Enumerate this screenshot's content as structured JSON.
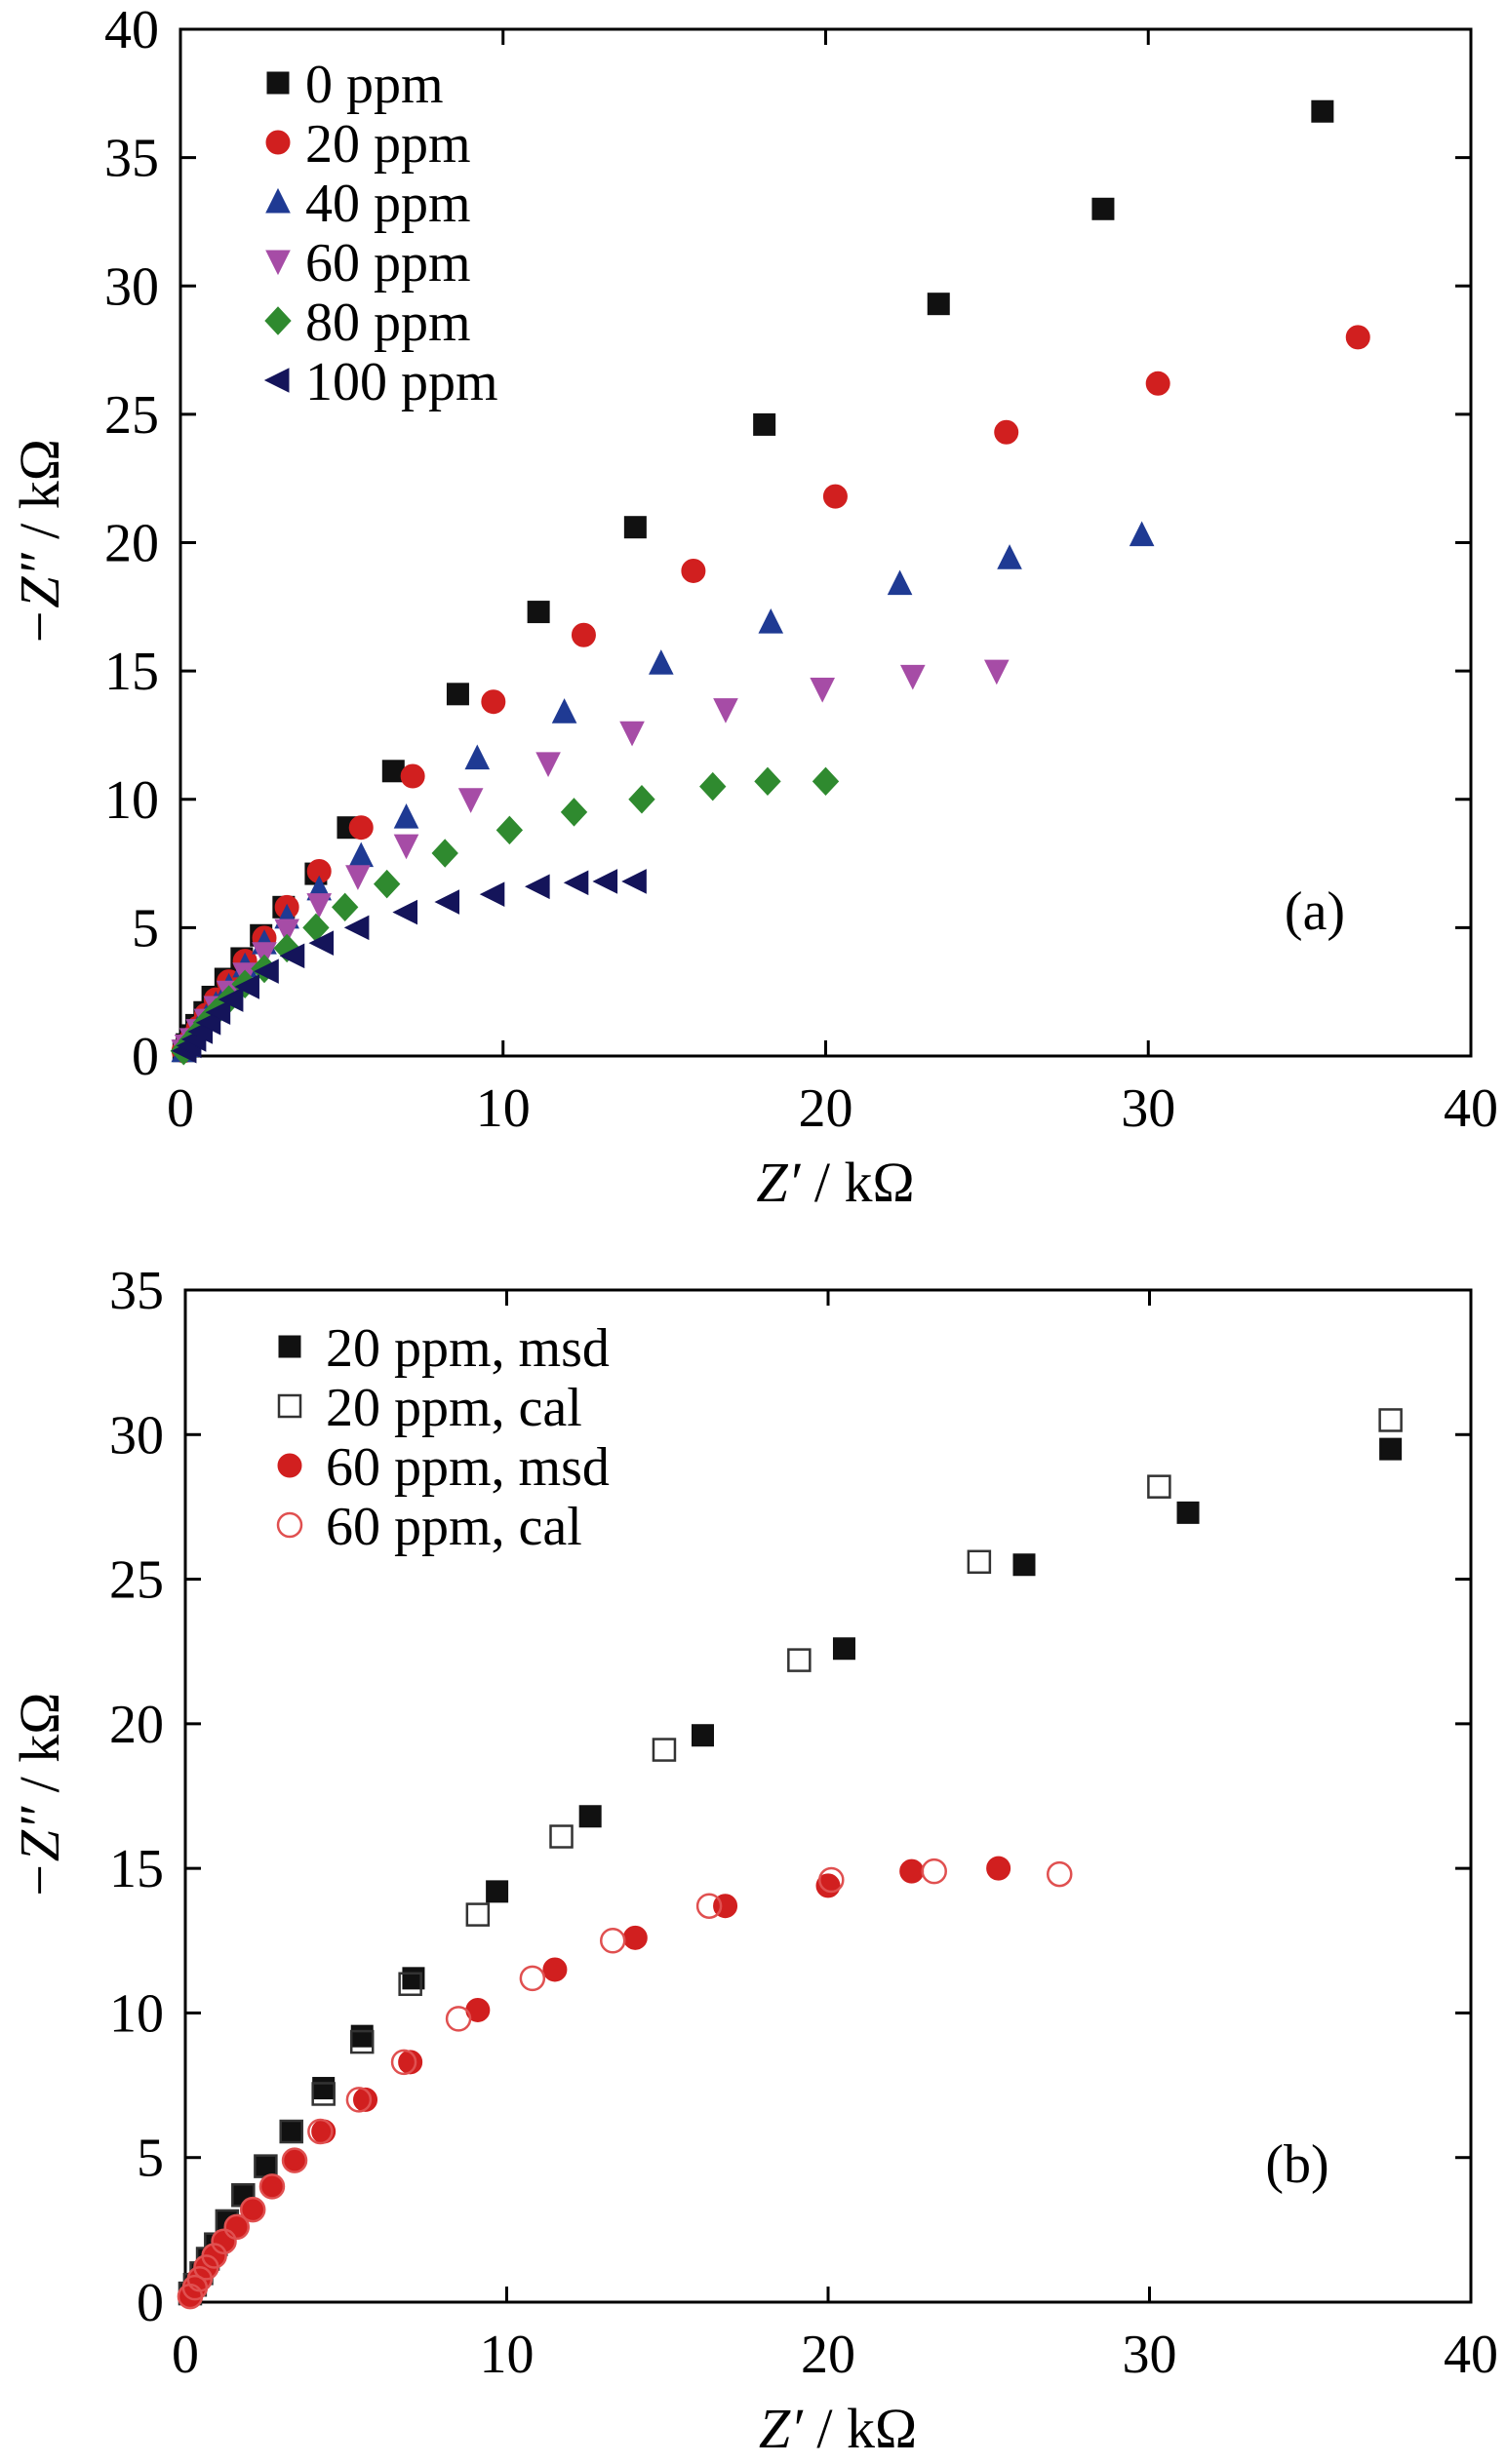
{
  "chart_data": [
    {
      "type": "scatter",
      "panel_label": "(a)",
      "xlabel": {
        "var": "Z′",
        "unit": " / kΩ"
      },
      "ylabel": {
        "var": "−Z″",
        "unit": " / kΩ"
      },
      "xlim": [
        0,
        40
      ],
      "ylim": [
        0,
        40
      ],
      "xticks": [
        0,
        10,
        20,
        30,
        40
      ],
      "yticks": [
        0,
        5,
        10,
        15,
        20,
        25,
        30,
        35,
        40
      ],
      "grid": false,
      "legend_position": "top-left",
      "series": [
        {
          "name": "0 ppm",
          "marker": "square",
          "color": "#111111",
          "filled": true,
          "x": [
            0.1,
            0.2,
            0.35,
            0.5,
            0.75,
            1.0,
            1.4,
            1.9,
            2.5,
            3.2,
            4.2,
            5.2,
            6.6,
            8.6,
            11.1,
            14.1,
            18.1,
            23.5,
            28.6,
            35.4
          ],
          "y": [
            0.2,
            0.45,
            0.8,
            1.2,
            1.7,
            2.3,
            3.0,
            3.8,
            4.7,
            5.8,
            7.1,
            8.9,
            11.1,
            14.1,
            17.3,
            20.6,
            24.6,
            29.3,
            33.0,
            36.8
          ]
        },
        {
          "name": "20 ppm",
          "marker": "circle",
          "color": "#d11f1f",
          "filled": true,
          "x": [
            0.1,
            0.2,
            0.35,
            0.55,
            0.8,
            1.1,
            1.5,
            2.0,
            2.6,
            3.3,
            4.3,
            5.6,
            7.2,
            9.7,
            12.5,
            15.9,
            20.3,
            25.6,
            30.3,
            36.5
          ],
          "y": [
            0.2,
            0.4,
            0.7,
            1.1,
            1.6,
            2.2,
            2.9,
            3.7,
            4.6,
            5.8,
            7.2,
            8.9,
            10.9,
            13.8,
            16.4,
            18.9,
            21.8,
            24.3,
            26.2,
            28.0
          ]
        },
        {
          "name": "40 ppm",
          "marker": "triangle-up",
          "color": "#1f3a93",
          "filled": true,
          "x": [
            0.1,
            0.2,
            0.35,
            0.55,
            0.8,
            1.1,
            1.5,
            2.0,
            2.6,
            3.3,
            4.3,
            5.6,
            7.0,
            9.2,
            11.9,
            14.9,
            18.3,
            22.3,
            25.7,
            29.8
          ],
          "y": [
            0.2,
            0.4,
            0.7,
            1.1,
            1.5,
            2.0,
            2.7,
            3.5,
            4.4,
            5.4,
            6.5,
            7.8,
            9.3,
            11.6,
            13.4,
            15.3,
            16.9,
            18.4,
            19.4,
            20.3
          ]
        },
        {
          "name": "60 ppm",
          "marker": "triangle-down",
          "color": "#a64ca6",
          "filled": true,
          "x": [
            0.1,
            0.2,
            0.35,
            0.55,
            0.8,
            1.1,
            1.5,
            2.0,
            2.6,
            3.3,
            4.3,
            5.5,
            7.0,
            9.0,
            11.4,
            14.0,
            16.9,
            19.9,
            22.7,
            25.3
          ],
          "y": [
            0.2,
            0.4,
            0.65,
            1.0,
            1.4,
            1.9,
            2.5,
            3.2,
            4.0,
            4.9,
            5.9,
            7.0,
            8.2,
            10.0,
            11.4,
            12.6,
            13.5,
            14.3,
            14.8,
            15.0
          ]
        },
        {
          "name": "80 ppm",
          "marker": "diamond",
          "color": "#2f8a2f",
          "filled": true,
          "x": [
            0.1,
            0.2,
            0.35,
            0.55,
            0.8,
            1.1,
            1.5,
            2.0,
            2.6,
            3.3,
            4.2,
            5.1,
            6.4,
            8.2,
            10.2,
            12.2,
            14.3,
            16.5,
            18.2,
            20.0
          ],
          "y": [
            0.2,
            0.35,
            0.6,
            0.9,
            1.3,
            1.7,
            2.2,
            2.8,
            3.4,
            4.2,
            5.0,
            5.8,
            6.7,
            7.9,
            8.8,
            9.5,
            10.0,
            10.5,
            10.7,
            10.7
          ]
        },
        {
          "name": "100 ppm",
          "marker": "triangle-left",
          "color": "#14145a",
          "filled": true,
          "x": [
            0.15,
            0.3,
            0.45,
            0.65,
            0.9,
            1.2,
            1.6,
            2.1,
            2.7,
            3.5,
            4.4,
            5.5,
            7.0,
            8.3,
            9.7,
            11.1,
            12.3,
            13.2,
            14.1
          ],
          "y": [
            0.2,
            0.4,
            0.65,
            0.95,
            1.3,
            1.7,
            2.2,
            2.7,
            3.3,
            3.9,
            4.4,
            5.0,
            5.6,
            6.0,
            6.3,
            6.6,
            6.75,
            6.8,
            6.8
          ]
        }
      ]
    },
    {
      "type": "scatter",
      "panel_label": "(b)",
      "xlabel": {
        "var": "Z′",
        "unit": " / kΩ"
      },
      "ylabel": {
        "var": "−Z″",
        "unit": " / kΩ"
      },
      "xlim": [
        0,
        40
      ],
      "ylim": [
        0,
        35
      ],
      "xticks": [
        0,
        10,
        20,
        30,
        40
      ],
      "yticks": [
        0,
        5,
        10,
        15,
        20,
        25,
        30,
        35
      ],
      "grid": false,
      "legend_position": "top-left",
      "series": [
        {
          "name": "20 ppm, msd",
          "marker": "square",
          "color": "#111111",
          "filled": true,
          "x": [
            0.15,
            0.3,
            0.5,
            0.7,
            0.95,
            1.3,
            1.8,
            2.5,
            3.3,
            4.3,
            5.5,
            7.1,
            9.7,
            12.6,
            16.1,
            20.5,
            26.1,
            31.2,
            37.5
          ],
          "y": [
            0.3,
            0.6,
            1.0,
            1.5,
            2.0,
            2.8,
            3.7,
            4.7,
            5.9,
            7.4,
            9.2,
            11.2,
            14.2,
            16.8,
            19.6,
            22.6,
            25.5,
            27.3,
            29.5
          ]
        },
        {
          "name": "20 ppm, cal",
          "marker": "square",
          "color": "#333333",
          "filled": false,
          "x": [
            0.15,
            0.3,
            0.5,
            0.7,
            0.95,
            1.3,
            1.8,
            2.5,
            3.3,
            4.3,
            5.5,
            7.0,
            9.1,
            11.7,
            14.9,
            19.1,
            24.7,
            30.3,
            37.5
          ],
          "y": [
            0.3,
            0.6,
            1.0,
            1.5,
            2.0,
            2.8,
            3.7,
            4.7,
            5.9,
            7.2,
            9.0,
            11.0,
            13.4,
            16.1,
            19.1,
            22.2,
            25.6,
            28.2,
            30.5
          ]
        },
        {
          "name": "60 ppm, msd",
          "marker": "circle",
          "color": "#d11f1f",
          "filled": true,
          "x": [
            0.15,
            0.3,
            0.45,
            0.65,
            0.9,
            1.2,
            1.6,
            2.1,
            2.7,
            3.4,
            4.3,
            5.6,
            7.0,
            9.1,
            11.5,
            14.0,
            16.8,
            20.0,
            22.6,
            25.3
          ],
          "y": [
            0.2,
            0.5,
            0.8,
            1.2,
            1.6,
            2.1,
            2.6,
            3.2,
            4.0,
            4.9,
            5.9,
            7.0,
            8.3,
            10.1,
            11.5,
            12.6,
            13.7,
            14.4,
            14.9,
            15.0
          ]
        },
        {
          "name": "60 ppm, cal",
          "marker": "circle",
          "color": "#e05050",
          "filled": false,
          "x": [
            0.15,
            0.3,
            0.45,
            0.65,
            0.9,
            1.2,
            1.6,
            2.1,
            2.7,
            3.4,
            4.2,
            5.4,
            6.8,
            8.5,
            10.8,
            13.3,
            16.3,
            20.1,
            23.3,
            27.2
          ],
          "y": [
            0.2,
            0.5,
            0.8,
            1.2,
            1.6,
            2.1,
            2.6,
            3.2,
            4.0,
            4.9,
            5.9,
            7.0,
            8.3,
            9.8,
            11.2,
            12.5,
            13.7,
            14.6,
            14.9,
            14.8
          ]
        }
      ]
    }
  ]
}
